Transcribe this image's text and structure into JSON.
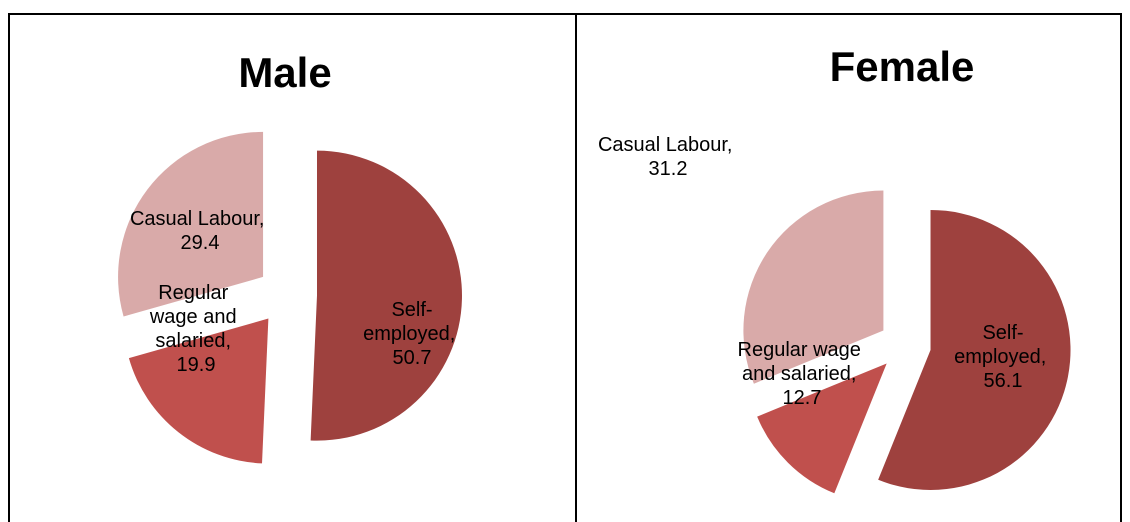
{
  "chart_data": [
    {
      "type": "pie",
      "title": "Male",
      "values": [
        50.7,
        19.9,
        29.4
      ],
      "value_labels": [
        "Self-employed, 50.7",
        "Regular wage and salaried, 19.9",
        "Casual Labour, 29.4"
      ],
      "colors": [
        "#9e413e",
        "#c0504d",
        "#d9aaa9"
      ]
    },
    {
      "type": "pie",
      "title": "Female",
      "values": [
        56.1,
        12.7,
        31.2
      ],
      "value_labels": [
        "Self-employed, 56.1",
        "Regular wage and salaried, 12.7",
        "Casual Labour, 31.2"
      ],
      "colors": [
        "#9e413e",
        "#c0504d",
        "#d9aaa9"
      ]
    }
  ]
}
